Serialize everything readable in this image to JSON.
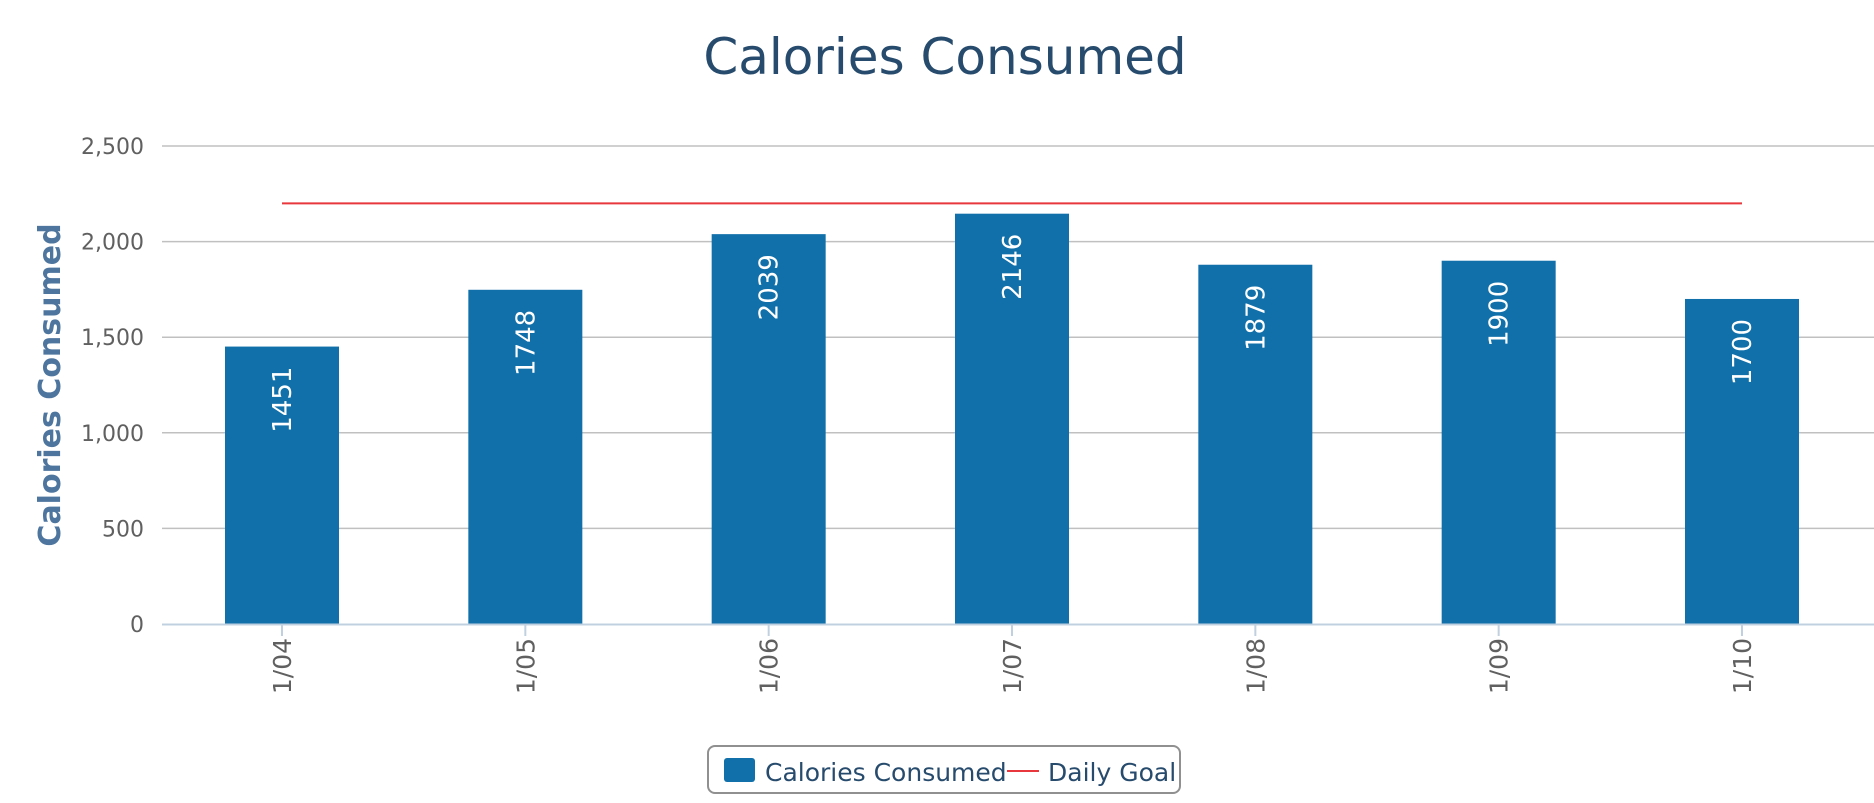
{
  "chart_data": {
    "type": "bar",
    "title": "Calories Consumed",
    "ylabel": "Calories Consumed",
    "xlabel": "",
    "categories": [
      "1/04",
      "1/05",
      "1/06",
      "1/07",
      "1/08",
      "1/09",
      "1/10"
    ],
    "series": [
      {
        "name": "Calories Consumed",
        "type": "bar",
        "values": [
          1451,
          1748,
          2039,
          2146,
          1879,
          1900,
          1700
        ],
        "color": "#1170aa"
      },
      {
        "name": "Daily Goal",
        "type": "line",
        "values": [
          2200,
          2200,
          2200,
          2200,
          2200,
          2200,
          2200
        ],
        "color": "#e8383d"
      }
    ],
    "ylim": [
      0,
      2500
    ],
    "yticks": [
      "0",
      "500",
      "1,000",
      "1,500",
      "2,000",
      "2,500"
    ],
    "grid": true,
    "data_labels": true,
    "legend_position": "bottom-center"
  },
  "colors": {
    "title": "#274b6d",
    "axis_title": "#4d759e",
    "tick_text": "#606060",
    "gridline": "#c0c0c0",
    "axis_line": "#c0d0e0",
    "legend_border": "#909090"
  }
}
